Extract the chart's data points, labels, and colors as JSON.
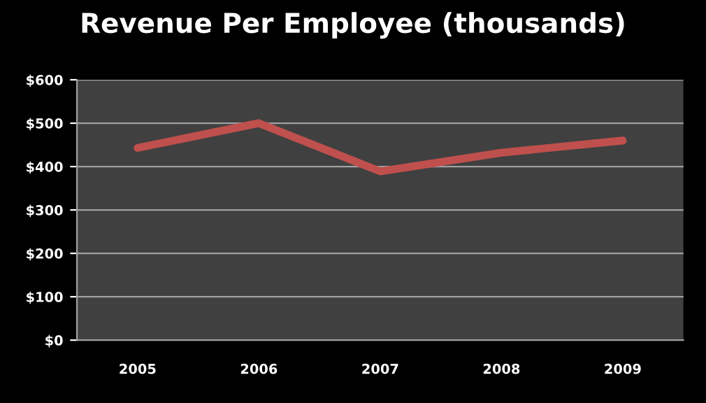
{
  "chart_data": {
    "type": "line",
    "title": "Revenue Per Employee (thousands)",
    "categories": [
      "2005",
      "2006",
      "2007",
      "2008",
      "2009"
    ],
    "series": [
      {
        "color": "#c0504d",
        "values": [
          443,
          500,
          389,
          432,
          460
        ]
      }
    ],
    "ylim": [
      0,
      600
    ],
    "yticks": [
      {
        "value": 0,
        "label": "$0"
      },
      {
        "value": 100,
        "label": "$100"
      },
      {
        "value": 200,
        "label": "$200"
      },
      {
        "value": 300,
        "label": "$300"
      },
      {
        "value": 400,
        "label": "$400"
      },
      {
        "value": 500,
        "label": "$500"
      },
      {
        "value": 600,
        "label": "$600"
      }
    ],
    "grid": "y",
    "marker": "none",
    "line_style": "solid",
    "legend": false
  }
}
